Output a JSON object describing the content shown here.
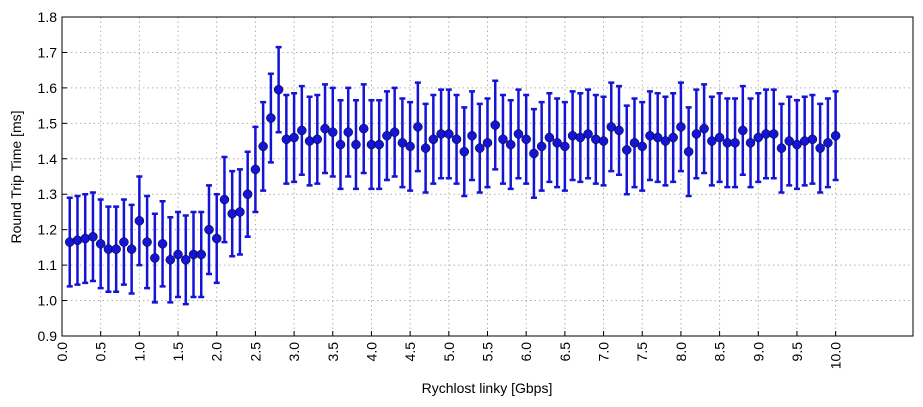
{
  "chart_data": {
    "type": "errorbar",
    "xlabel": "Rychlost linky [Gbps]",
    "ylabel": "Round Trip Time [ms]",
    "color": "#1414d6",
    "grid": true,
    "xlim": [
      0,
      11
    ],
    "ylim": [
      0.9,
      1.8
    ],
    "xticks": [
      {
        "value": 0,
        "label": "0.0"
      },
      0.5,
      {
        "value": 1,
        "label": "1.0"
      },
      1.5,
      {
        "value": 2,
        "label": "2.0"
      },
      2.5,
      {
        "value": 3,
        "label": "3.0"
      },
      3.5,
      {
        "value": 4,
        "label": "4.0"
      },
      4.5,
      {
        "value": 5,
        "label": "5.0"
      },
      5.5,
      {
        "value": 6,
        "label": "6.0"
      },
      6.5,
      {
        "value": 7,
        "label": "7.0"
      },
      7.5,
      {
        "value": 8,
        "label": "8.0"
      },
      8.5,
      {
        "value": 9,
        "label": "9.0"
      },
      9.5,
      {
        "value": 10,
        "label": "10.0"
      }
    ],
    "yticks": [
      0.9,
      {
        "value": 1,
        "label": "1.0"
      },
      1.1,
      1.2,
      1.3,
      1.4,
      1.5,
      1.6,
      1.7,
      1.8
    ],
    "x": [
      0.1,
      0.2,
      0.3,
      0.4,
      0.5,
      0.6,
      0.7,
      0.8,
      0.9,
      1.0,
      1.1,
      1.2,
      1.3,
      1.4,
      1.5,
      1.6,
      1.7,
      1.8,
      1.9,
      2.0,
      2.1,
      2.2,
      2.3,
      2.4,
      2.5,
      2.6,
      2.7,
      2.8,
      2.9,
      3.0,
      3.1,
      3.2,
      3.3,
      3.4,
      3.5,
      3.6,
      3.7,
      3.8,
      3.9,
      4.0,
      4.1,
      4.2,
      4.3,
      4.4,
      4.5,
      4.6,
      4.7,
      4.8,
      4.9,
      5.0,
      5.1,
      5.2,
      5.3,
      5.4,
      5.5,
      5.6,
      5.7,
      5.8,
      5.9,
      6.0,
      6.1,
      6.2,
      6.3,
      6.4,
      6.5,
      6.6,
      6.7,
      6.8,
      6.9,
      7.0,
      7.1,
      7.2,
      7.3,
      7.4,
      7.5,
      7.6,
      7.7,
      7.8,
      7.9,
      8.0,
      8.1,
      8.2,
      8.3,
      8.4,
      8.5,
      8.6,
      8.7,
      8.8,
      8.9,
      9.0,
      9.1,
      9.2,
      9.3,
      9.4,
      9.5,
      9.6,
      9.7,
      9.8,
      9.9,
      10.0
    ],
    "values": [
      1.165,
      1.17,
      1.175,
      1.18,
      1.16,
      1.145,
      1.145,
      1.165,
      1.145,
      1.225,
      1.165,
      1.12,
      1.16,
      1.115,
      1.13,
      1.115,
      1.13,
      1.13,
      1.2,
      1.175,
      1.285,
      1.245,
      1.25,
      1.3,
      1.37,
      1.435,
      1.515,
      1.595,
      1.455,
      1.46,
      1.48,
      1.45,
      1.455,
      1.485,
      1.475,
      1.44,
      1.475,
      1.44,
      1.485,
      1.44,
      1.44,
      1.465,
      1.475,
      1.445,
      1.435,
      1.49,
      1.43,
      1.455,
      1.47,
      1.47,
      1.455,
      1.42,
      1.465,
      1.43,
      1.445,
      1.495,
      1.455,
      1.44,
      1.47,
      1.455,
      1.415,
      1.435,
      1.46,
      1.445,
      1.435,
      1.465,
      1.46,
      1.47,
      1.455,
      1.45,
      1.49,
      1.48,
      1.425,
      1.445,
      1.435,
      1.465,
      1.46,
      1.45,
      1.46,
      1.49,
      1.42,
      1.47,
      1.485,
      1.45,
      1.46,
      1.445,
      1.445,
      1.48,
      1.445,
      1.46,
      1.47,
      1.47,
      1.43,
      1.45,
      1.44,
      1.45,
      1.455,
      1.43,
      1.445,
      1.465
    ],
    "errors": [
      0.125,
      0.125,
      0.125,
      0.125,
      0.125,
      0.12,
      0.12,
      0.12,
      0.125,
      0.125,
      0.13,
      0.125,
      0.12,
      0.12,
      0.12,
      0.125,
      0.12,
      0.12,
      0.125,
      0.125,
      0.12,
      0.12,
      0.12,
      0.12,
      0.12,
      0.125,
      0.125,
      0.12,
      0.125,
      0.125,
      0.125,
      0.125,
      0.125,
      0.125,
      0.125,
      0.125,
      0.125,
      0.125,
      0.125,
      0.125,
      0.125,
      0.125,
      0.125,
      0.125,
      0.125,
      0.125,
      0.125,
      0.125,
      0.125,
      0.125,
      0.125,
      0.125,
      0.125,
      0.125,
      0.125,
      0.125,
      0.125,
      0.125,
      0.125,
      0.125,
      0.125,
      0.125,
      0.125,
      0.125,
      0.125,
      0.125,
      0.125,
      0.125,
      0.125,
      0.125,
      0.125,
      0.125,
      0.125,
      0.125,
      0.125,
      0.125,
      0.125,
      0.125,
      0.125,
      0.125,
      0.125,
      0.125,
      0.125,
      0.125,
      0.125,
      0.125,
      0.125,
      0.125,
      0.125,
      0.125,
      0.125,
      0.125,
      0.125,
      0.125,
      0.125,
      0.125,
      0.125,
      0.125,
      0.125,
      0.125
    ]
  }
}
